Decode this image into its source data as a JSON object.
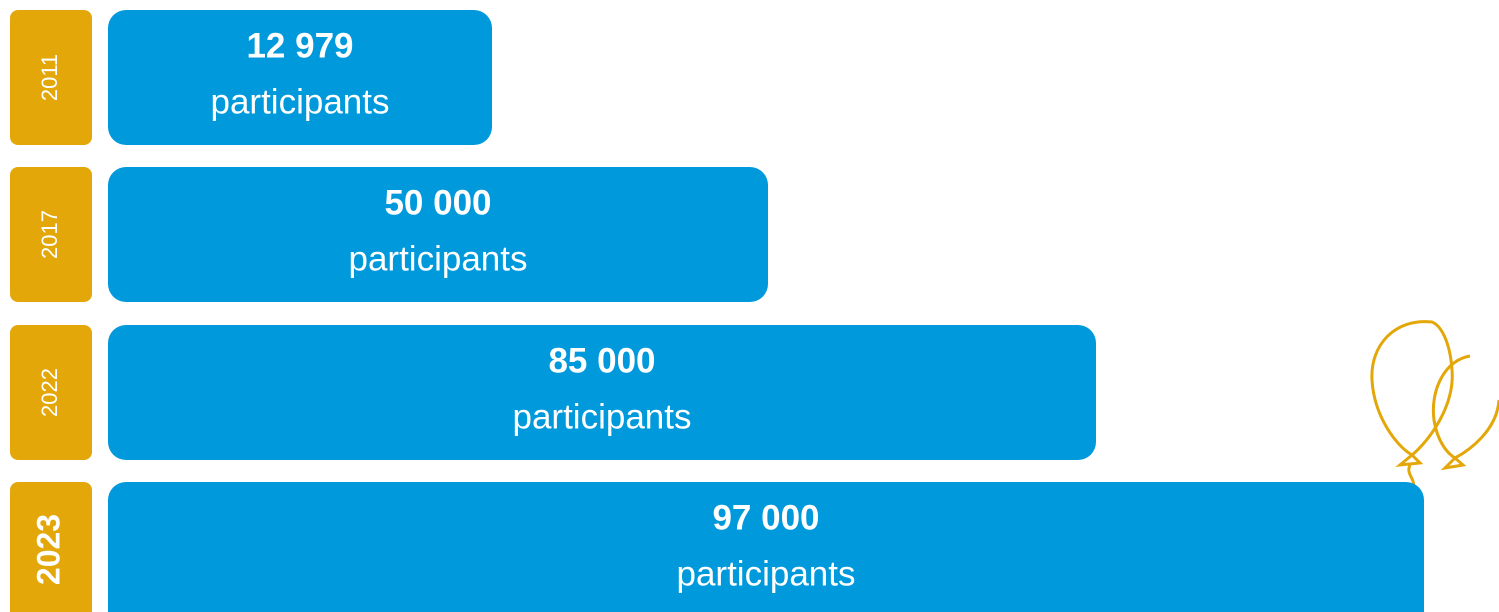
{
  "rows": [
    {
      "year": "2011",
      "value": "12 979",
      "unit": "participants"
    },
    {
      "year": "2017",
      "value": "50 000",
      "unit": "participants"
    },
    {
      "year": "2022",
      "value": "85 000",
      "unit": "participants"
    },
    {
      "year": "2023",
      "value": "97 000",
      "unit": "participants"
    }
  ]
}
